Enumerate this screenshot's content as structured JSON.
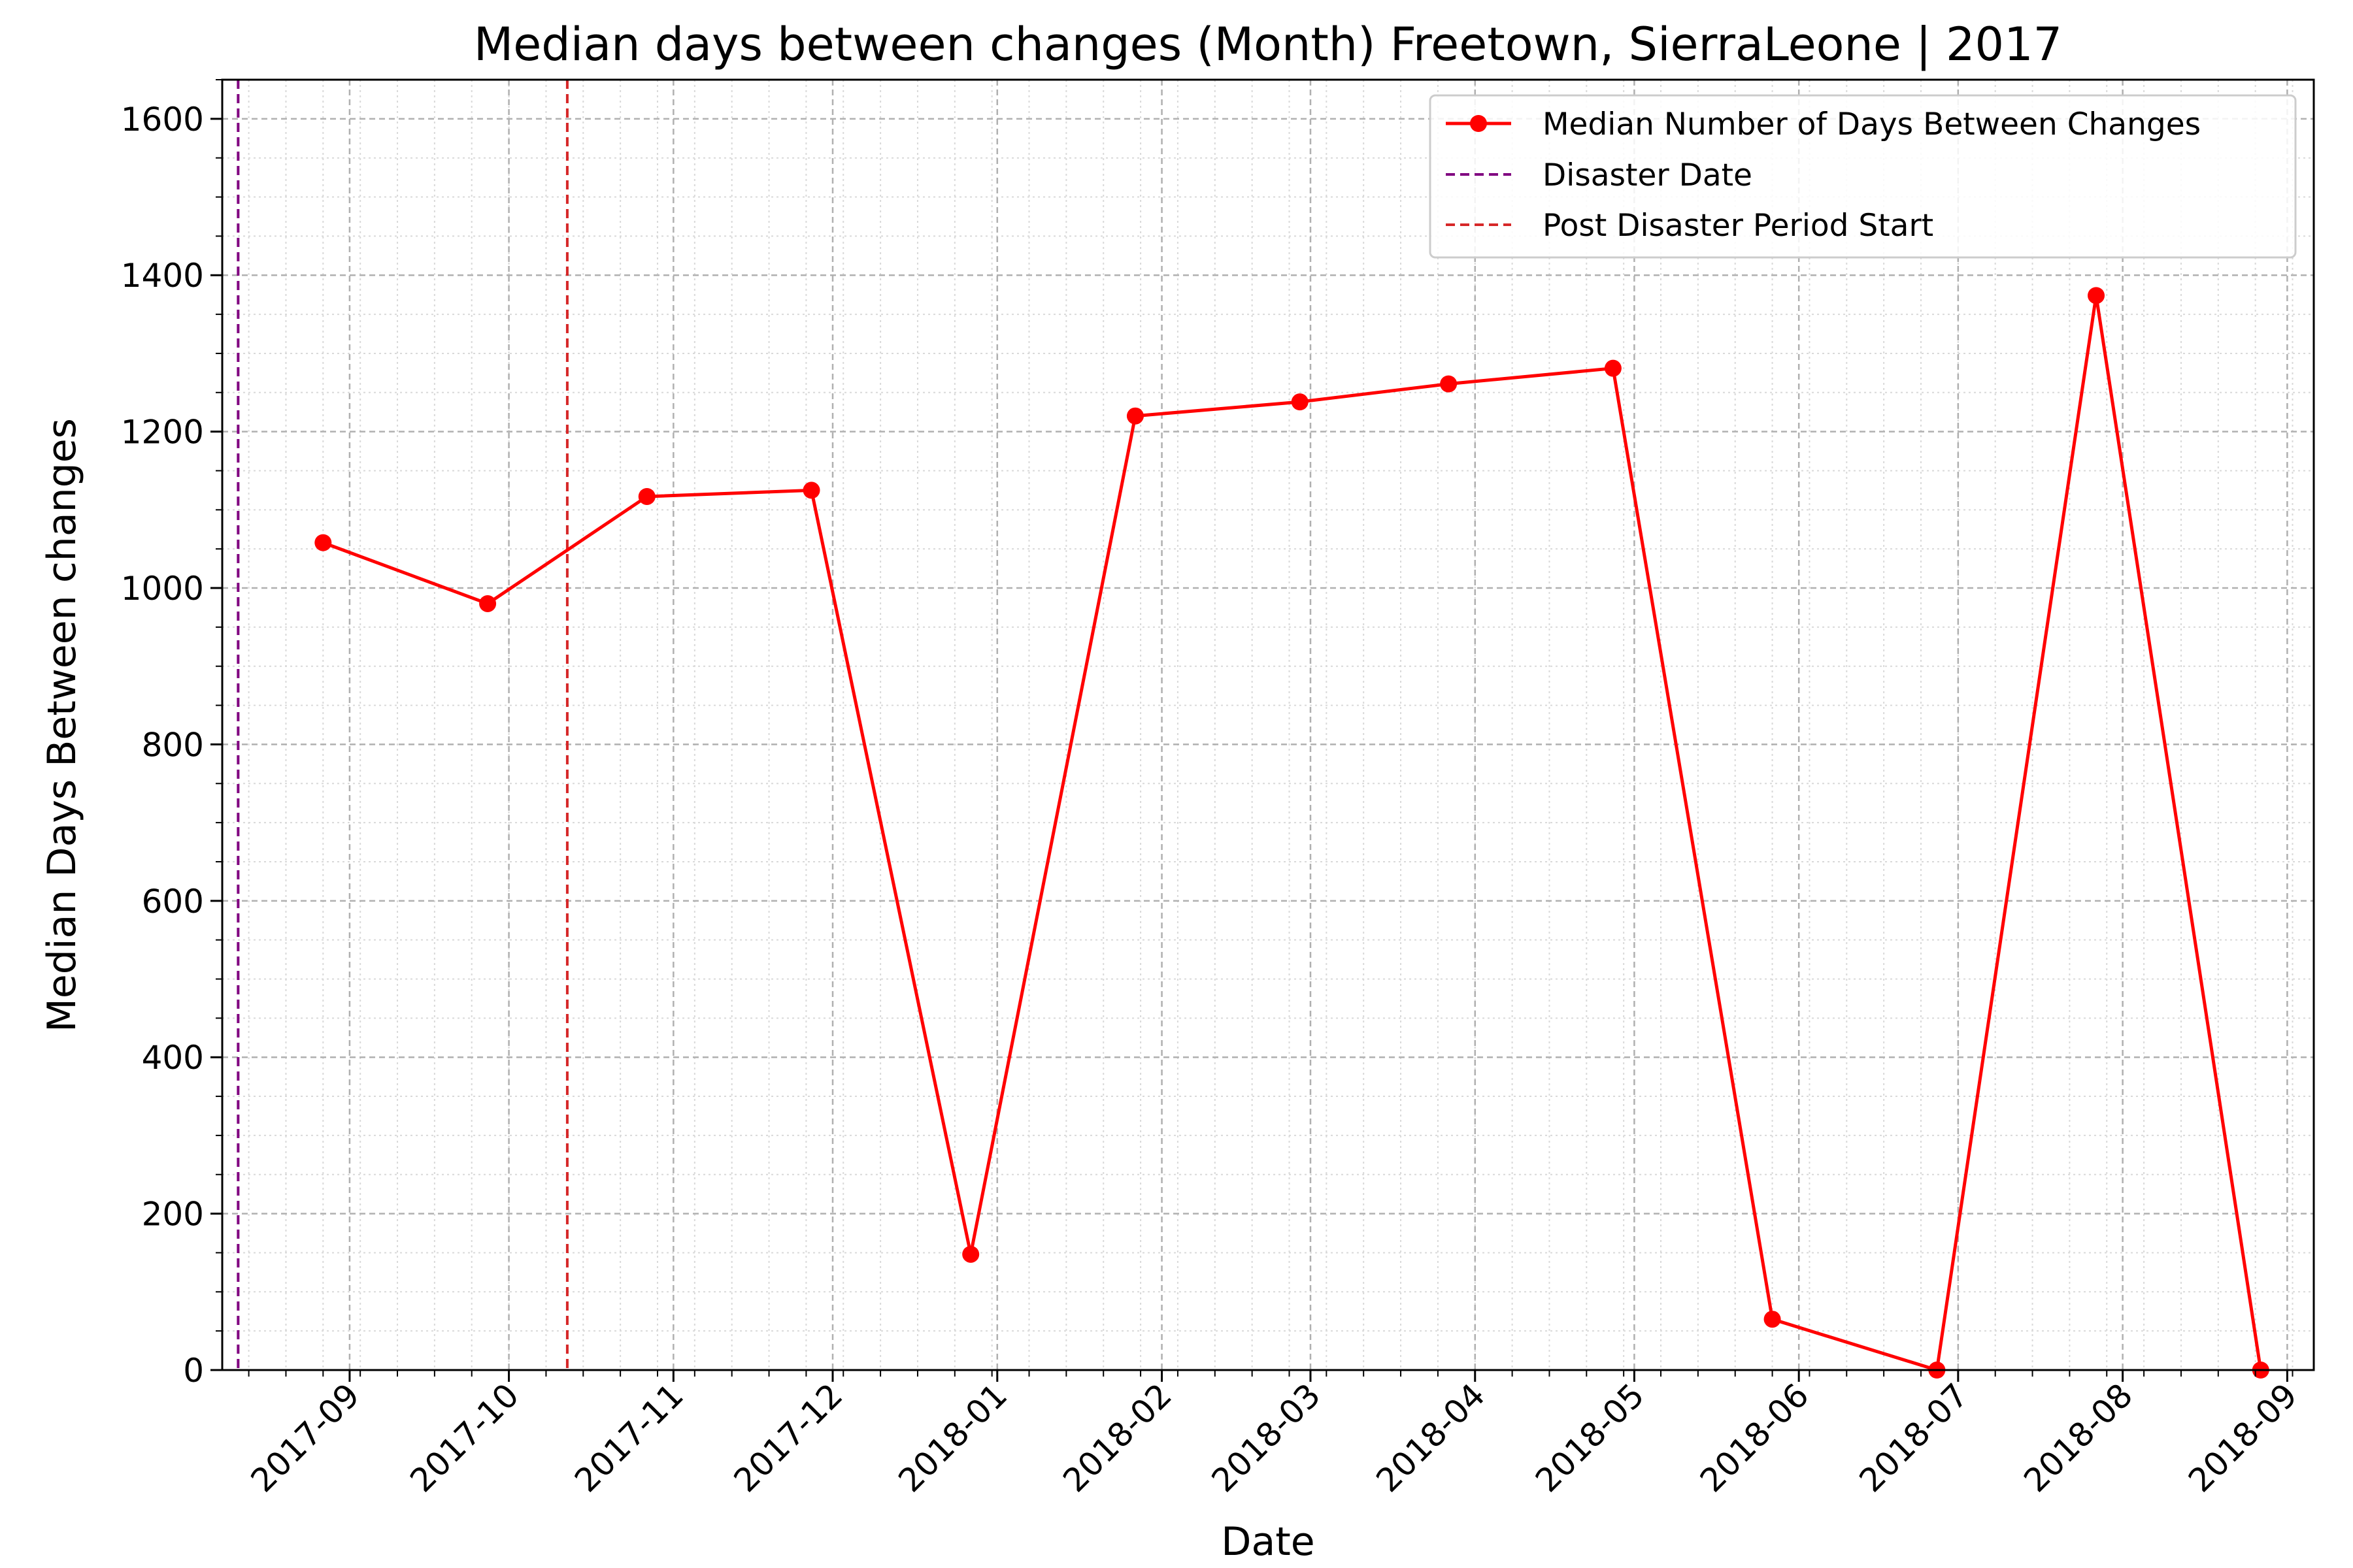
{
  "chart_data": {
    "type": "line",
    "title": "Median days between changes (Month) Freetown, SierraLeone | 2017",
    "xlabel": "Date",
    "ylabel": "Median Days Between changes",
    "xlim": [
      "2017-08-08",
      "2018-09-06"
    ],
    "ylim": [
      0,
      1650
    ],
    "x_ticks": [
      "2017-09",
      "2017-10",
      "2017-11",
      "2017-12",
      "2018-01",
      "2018-02",
      "2018-03",
      "2018-04",
      "2018-05",
      "2018-06",
      "2018-07",
      "2018-08",
      "2018-09"
    ],
    "y_ticks": [
      0,
      200,
      400,
      600,
      800,
      1000,
      1200,
      1400,
      1600
    ],
    "grid": true,
    "legend_position": "top-right",
    "series": [
      {
        "name": "Median Number of Days Between Changes",
        "color": "#ff0000",
        "marker": "circle",
        "x": [
          "2017-08-27",
          "2017-09-27",
          "2017-10-27",
          "2017-11-27",
          "2017-12-27",
          "2018-01-27",
          "2018-02-27",
          "2018-03-27",
          "2018-04-27",
          "2018-05-27",
          "2018-06-27",
          "2018-07-27",
          "2018-08-27"
        ],
        "values": [
          1058,
          980,
          1117,
          1125,
          148,
          1220,
          1238,
          1261,
          1281,
          65,
          0,
          1374,
          0
        ]
      }
    ],
    "reference_lines": [
      {
        "name": "Disaster Date",
        "date": "2017-08-11",
        "color": "#800080",
        "style": "dashed"
      },
      {
        "name": "Post Disaster Period Start",
        "date": "2017-10-12",
        "color": "#d62728",
        "style": "dashed"
      }
    ]
  }
}
